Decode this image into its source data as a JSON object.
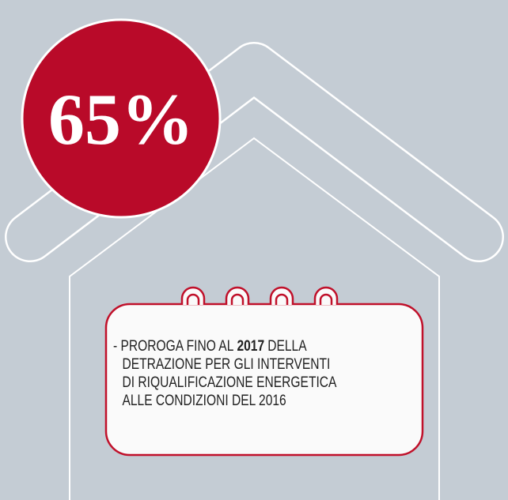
{
  "badge": {
    "text": "65%"
  },
  "note": {
    "lines": [
      {
        "prefix": "- PROROGA FINO AL",
        "bold": "2017",
        "suffix": "DELLA"
      },
      {
        "text": "DETRAZIONE PER GLI INTERVENTI"
      },
      {
        "text": "DI RIQUALIFICAZIONE ENERGETICA"
      },
      {
        "text": "ALLE CONDIZIONI DEL 2016"
      }
    ]
  }
}
